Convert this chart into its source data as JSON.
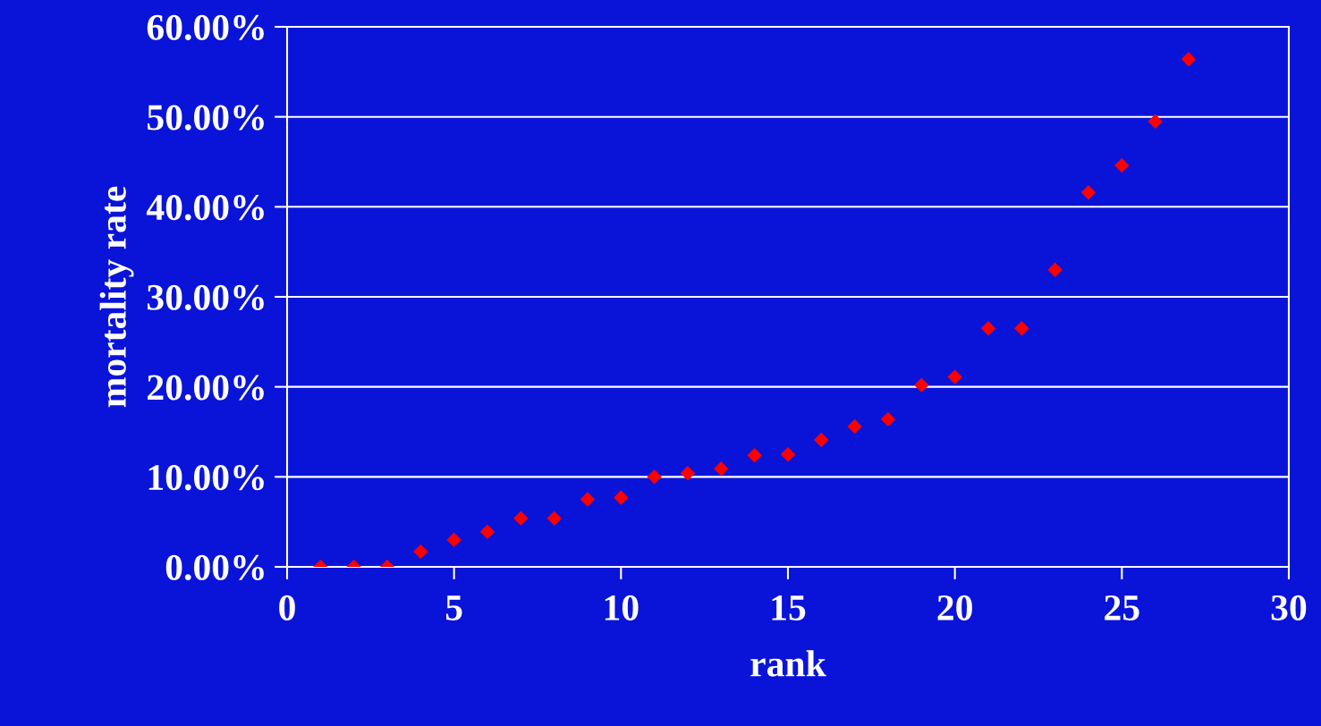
{
  "chart_data": {
    "type": "scatter",
    "xlabel": "rank",
    "ylabel": "mortality rate",
    "x": [
      1,
      2,
      3,
      4,
      5,
      6,
      7,
      8,
      9,
      10,
      11,
      12,
      13,
      14,
      15,
      16,
      17,
      18,
      19,
      20,
      21,
      22,
      23,
      24,
      25,
      26,
      27
    ],
    "values": [
      0,
      0,
      0,
      1.7,
      3.0,
      3.9,
      5.4,
      5.4,
      7.5,
      7.7,
      10.0,
      10.4,
      10.9,
      12.4,
      12.5,
      14.1,
      15.6,
      16.4,
      20.2,
      21.1,
      26.5,
      26.5,
      33.0,
      41.6,
      44.6,
      49.5,
      56.4
    ],
    "color": "#ff0000",
    "marker": "diamond",
    "xlim": [
      0,
      30
    ],
    "xticks": [
      0,
      5,
      10,
      15,
      20,
      25,
      30
    ],
    "ylim": [
      0,
      60
    ],
    "yticks": [
      {
        "value": 0,
        "label": "0.00%"
      },
      {
        "value": 10,
        "label": "10.00%"
      },
      {
        "value": 20,
        "label": "20.00%"
      },
      {
        "value": 30,
        "label": "30.00%"
      },
      {
        "value": 40,
        "label": "40.00%"
      },
      {
        "value": 50,
        "label": "50.00%"
      },
      {
        "value": 60,
        "label": "60.00%"
      }
    ],
    "grid": "y"
  }
}
